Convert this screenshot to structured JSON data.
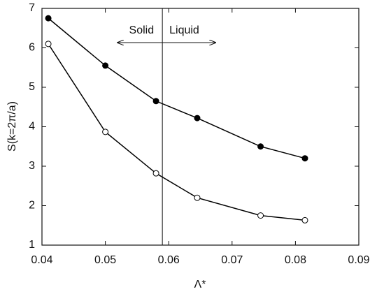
{
  "chart_data": {
    "type": "line",
    "ylabel": "S(k=2π/a)",
    "xlabel": "Λ*",
    "xlim": [
      0.04,
      0.09
    ],
    "xticks": [
      0.04,
      0.05,
      0.06,
      0.07,
      0.08,
      0.09
    ],
    "ylim": [
      1,
      7
    ],
    "yticks": [
      1,
      2,
      3,
      4,
      5,
      6,
      7
    ],
    "x": [
      0.041,
      0.05,
      0.058,
      0.0645,
      0.0745,
      0.0815
    ],
    "series": [
      {
        "color": "#000000",
        "marker": "filled",
        "values": [
          6.75,
          5.55,
          4.65,
          4.22,
          3.5,
          3.2
        ]
      },
      {
        "color": "#000000",
        "marker": "open",
        "values": [
          6.1,
          3.87,
          2.82,
          2.2,
          1.75,
          1.63
        ]
      }
    ],
    "divider_x": 0.059,
    "annotations": [
      "Solid",
      "Liquid"
    ]
  }
}
